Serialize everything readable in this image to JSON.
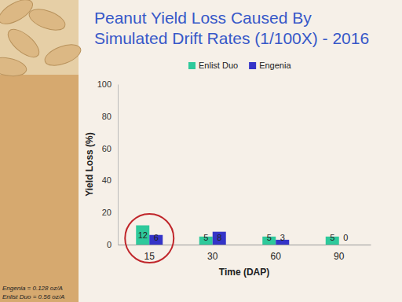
{
  "chart_data": {
    "type": "bar",
    "title": "Peanut Yield Loss Caused By Simulated Drift Rates (1/100X) - 2016",
    "x_label": "Time (DAP)",
    "y_label": "Yield Loss (%)",
    "categories": [
      "15",
      "30",
      "60",
      "90"
    ],
    "series": [
      {
        "name": "Enlist Duo",
        "color": "#2ec99b",
        "values": [
          12,
          5,
          5,
          5
        ]
      },
      {
        "name": "Engenia",
        "color": "#3434c8",
        "values": [
          6,
          8,
          3,
          0
        ]
      }
    ],
    "ylim": [
      0,
      100
    ],
    "yticks": [
      0,
      20,
      40,
      60,
      80,
      100
    ],
    "data_labels": true,
    "legend": "top",
    "annotations": [
      "Engenia = 0.128 oz/A",
      "Enlist Duo = 0.56 oz/A"
    ]
  }
}
